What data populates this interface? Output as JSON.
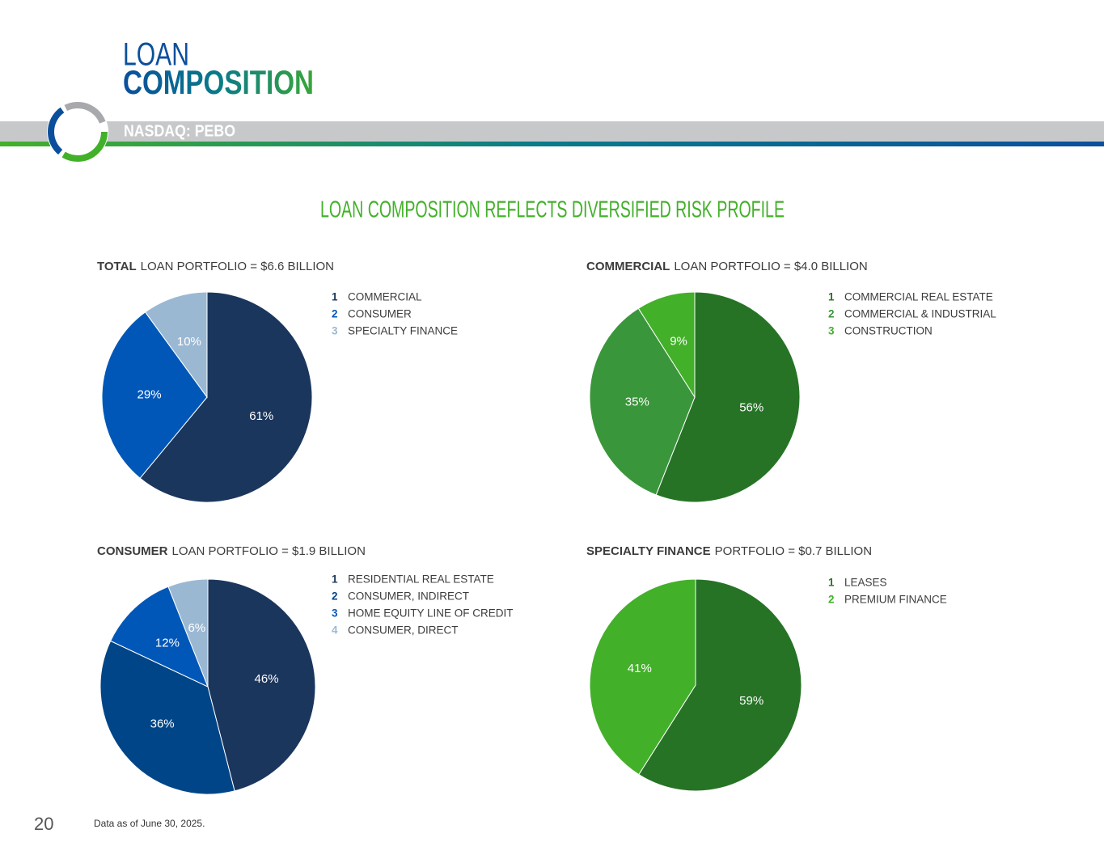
{
  "header": {
    "title_line1": "LOAN",
    "title_line2": "COMPOSITION",
    "ticker": "NASDAQ: PEBO"
  },
  "subtitle": "LOAN COMPOSITION REFLECTS DIVERSIFIED RISK PROFILE",
  "chart_data": [
    {
      "type": "pie",
      "title_bold": "TOTAL",
      "title": "LOAN PORTFOLIO = $6.6 BILLION",
      "legend_numbers": [
        "1",
        "2",
        "3"
      ],
      "categories": [
        "COMMERCIAL",
        "CONSUMER",
        "SPECIALTY FINANCE"
      ],
      "values": [
        61,
        29,
        10
      ],
      "value_labels": [
        "61%",
        "29%",
        "10%"
      ],
      "colors": [
        "#1b365d",
        "#0057b8",
        "#9bb8d3"
      ]
    },
    {
      "type": "pie",
      "title_bold": "COMMERCIAL",
      "title": "LOAN PORTFOLIO = $4.0 BILLION",
      "legend_numbers": [
        "1",
        "2",
        "3"
      ],
      "categories": [
        "COMMERCIAL REAL ESTATE",
        "COMMERCIAL & INDUSTRIAL",
        "CONSTRUCTION"
      ],
      "values": [
        56,
        35,
        9
      ],
      "value_labels": [
        "56%",
        "35%",
        "9%"
      ],
      "colors": [
        "#267326",
        "#3a963a",
        "#43b02a"
      ]
    },
    {
      "type": "pie",
      "title_bold": "CONSUMER",
      "title": "LOAN PORTFOLIO = $1.9 BILLION",
      "legend_numbers": [
        "1",
        "2",
        "3",
        "4"
      ],
      "categories": [
        "RESIDENTIAL REAL ESTATE",
        "CONSUMER, INDIRECT",
        "HOME EQUITY LINE OF CREDIT",
        "CONSUMER, DIRECT"
      ],
      "values": [
        46,
        36,
        12,
        6
      ],
      "value_labels": [
        "46%",
        "36%",
        "12%",
        "6%"
      ],
      "colors": [
        "#1b365d",
        "#004587",
        "#0057b8",
        "#9bb8d3"
      ]
    },
    {
      "type": "pie",
      "title_bold": "SPECIALTY FINANCE",
      "title": "PORTFOLIO = $0.7 BILLION",
      "legend_numbers": [
        "1",
        "2"
      ],
      "categories": [
        "LEASES",
        "PREMIUM FINANCE"
      ],
      "values": [
        59,
        41
      ],
      "value_labels": [
        "59%",
        "41%"
      ],
      "colors": [
        "#267326",
        "#43b02a"
      ]
    }
  ],
  "footer": {
    "page": "20",
    "note": "Data as of June 30, 2025."
  }
}
